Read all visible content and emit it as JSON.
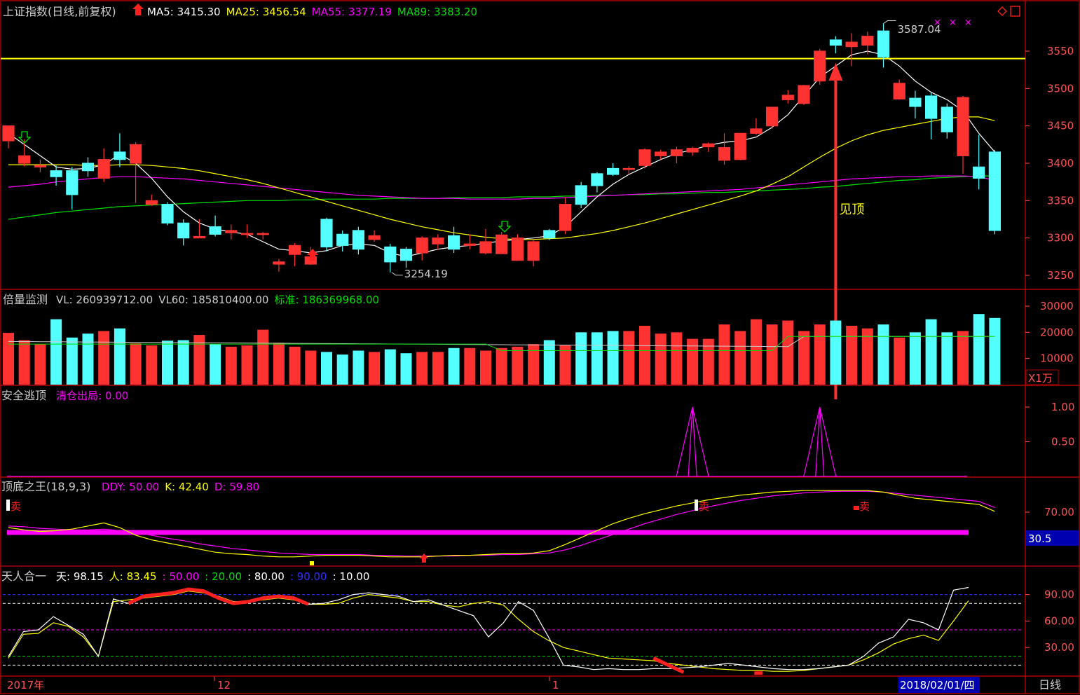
{
  "colors": {
    "up": "#ff3232",
    "down": "#54ffff",
    "ma5": "#ffffff",
    "ma25": "#ffff00",
    "ma55": "#ff00ff",
    "ma89": "#00e000",
    "frame": "#c00000",
    "axis": "#ff5050",
    "text": "#cccccc"
  },
  "main": {
    "title": "上证指数(日线,前复权)",
    "legend": [
      {
        "label": "MA5: 3415.30",
        "color": "#ffffff"
      },
      {
        "label": "MA25: 3456.54",
        "color": "#ffff00"
      },
      {
        "label": "MA55: 3377.19",
        "color": "#ff00ff"
      },
      {
        "label": "MA89: 3383.20",
        "color": "#00e000"
      }
    ],
    "yticks": [
      "3550",
      "3500",
      "3450",
      "3400",
      "3350",
      "3300",
      "3250"
    ],
    "annot_high": "3587.04",
    "annot_low": "3254.19",
    "annot_top": "见顶"
  },
  "volume": {
    "title": "倍量监测",
    "legend": [
      {
        "label": "VL: 260939712.00",
        "color": "#cccccc"
      },
      {
        "label": "VL60: 185810400.00",
        "color": "#cccccc"
      },
      {
        "label": "标准: 186369968.00",
        "color": "#00e000"
      }
    ],
    "yticks": [
      "30000",
      "20000",
      "10000"
    ],
    "unit": "X1万"
  },
  "escape": {
    "title": "安全逃顶",
    "legend": [
      {
        "label": "清仓出局: 0.00",
        "color": "#ff00ff"
      }
    ],
    "yticks": [
      "1.00",
      "0.50"
    ]
  },
  "kd": {
    "title": "顶底之王(18,9,3)",
    "legend": [
      {
        "label": "DDY: 50.00",
        "color": "#ff00ff"
      },
      {
        "label": "K: 42.40",
        "color": "#ffff00"
      },
      {
        "label": "D: 59.80",
        "color": "#ff00ff"
      }
    ],
    "yticks": [
      "70.00"
    ],
    "current": "30.5",
    "sell_label": "卖"
  },
  "trh": {
    "title": "天人合一",
    "legend": [
      {
        "label": "天: 98.15",
        "color": "#ffffff"
      },
      {
        "label": "人: 83.45",
        "color": "#ffff00"
      },
      {
        "label": ": 50.00",
        "color": "#ff00ff"
      },
      {
        "label": ": 20.00",
        "color": "#00e000"
      },
      {
        "label": ": 80.00",
        "color": "#ffffff"
      },
      {
        "label": ": 90.00",
        "color": "#3030ff"
      },
      {
        "label": ": 10.00",
        "color": "#ffffff"
      }
    ],
    "yticks": [
      "90.00",
      "60.00",
      "30.00"
    ]
  },
  "xaxis": {
    "labels": [
      "2017年",
      "12",
      "1"
    ],
    "current_date": "2018/02/01/四",
    "period": "日线"
  },
  "chart_data": {
    "type": "candlestick",
    "title": "上证指数(日线,前复权)",
    "ylim": [
      3230,
      3600
    ],
    "candles": [
      [
        3430,
        3450,
        3445,
        3420
      ],
      [
        3400,
        3410,
        3432,
        3396
      ],
      [
        3395,
        3397,
        3405,
        3388
      ],
      [
        3390,
        3382,
        3397,
        3370
      ],
      [
        3390,
        3358,
        3395,
        3338
      ],
      [
        3400,
        3390,
        3408,
        3382
      ],
      [
        3380,
        3405,
        3420,
        3375
      ],
      [
        3415,
        3405,
        3440,
        3395
      ],
      [
        3400,
        3425,
        3428,
        3347
      ],
      [
        3345,
        3350,
        3358,
        3343
      ],
      [
        3345,
        3320,
        3348,
        3317
      ],
      [
        3320,
        3300,
        3325,
        3290
      ],
      [
        3300,
        3302,
        3325,
        3300
      ],
      [
        3315,
        3305,
        3330,
        3302
      ],
      [
        3307,
        3310,
        3318,
        3298
      ],
      [
        3305,
        3306,
        3318,
        3300
      ],
      [
        3305,
        3306,
        3308,
        3298
      ],
      [
        3265,
        3268,
        3272,
        3255
      ],
      [
        3278,
        3290,
        3293,
        3262
      ],
      [
        3265,
        3275,
        3288,
        3264
      ],
      [
        3325,
        3288,
        3327,
        3282
      ],
      [
        3305,
        3290,
        3310,
        3282
      ],
      [
        3310,
        3285,
        3315,
        3278
      ],
      [
        3298,
        3303,
        3310,
        3295
      ],
      [
        3288,
        3268,
        3292,
        3254
      ],
      [
        3285,
        3270,
        3288,
        3260
      ],
      [
        3280,
        3300,
        3302,
        3270
      ],
      [
        3292,
        3300,
        3305,
        3284
      ],
      [
        3303,
        3285,
        3315,
        3280
      ],
      [
        3290,
        3292,
        3305,
        3285
      ],
      [
        3280,
        3295,
        3312,
        3278
      ],
      [
        3279,
        3304,
        3308,
        3279
      ],
      [
        3270,
        3300,
        3305,
        3270
      ],
      [
        3270,
        3295,
        3298,
        3262
      ],
      [
        3310,
        3300,
        3312,
        3297
      ],
      [
        3310,
        3345,
        3355,
        3305
      ],
      [
        3370,
        3345,
        3375,
        3340
      ],
      [
        3386,
        3370,
        3388,
        3361
      ],
      [
        3393,
        3385,
        3400,
        3383
      ],
      [
        3392,
        3393,
        3396,
        3386
      ],
      [
        3397,
        3418,
        3420,
        3393
      ],
      [
        3410,
        3415,
        3418,
        3405
      ],
      [
        3410,
        3418,
        3422,
        3400
      ],
      [
        3415,
        3420,
        3422,
        3410
      ],
      [
        3422,
        3426,
        3428,
        3415
      ],
      [
        3404,
        3421,
        3440,
        3398
      ],
      [
        3405,
        3440,
        3440,
        3404
      ],
      [
        3440,
        3446,
        3460,
        3438
      ],
      [
        3450,
        3475,
        3475,
        3446
      ],
      [
        3485,
        3491,
        3498,
        3480
      ],
      [
        3480,
        3504,
        3505,
        3478
      ],
      [
        3510,
        3550,
        3553,
        3505
      ],
      [
        3565,
        3558,
        3570,
        3547
      ],
      [
        3556,
        3562,
        3574,
        3530
      ],
      [
        3558,
        3570,
        3576,
        3546
      ],
      [
        3577,
        3542,
        3587,
        3528
      ],
      [
        3486,
        3507,
        3512,
        3485
      ],
      [
        3487,
        3476,
        3497,
        3460
      ],
      [
        3490,
        3460,
        3494,
        3432
      ],
      [
        3475,
        3442,
        3480,
        3433
      ],
      [
        3410,
        3488,
        3490,
        3386
      ],
      [
        3395,
        3380,
        3438,
        3365
      ],
      [
        3415,
        3310,
        3418,
        3305
      ]
    ],
    "volume": [
      19800,
      17000,
      15500,
      25000,
      18000,
      19500,
      20500,
      21500,
      15800,
      15000,
      16800,
      17000,
      19000,
      15500,
      14500,
      15000,
      21000,
      16000,
      14500,
      13000,
      12500,
      11500,
      13000,
      12500,
      13500,
      12000,
      12500,
      12500,
      14000,
      14000,
      13000,
      14000,
      14500,
      15500,
      17000,
      15000,
      20000,
      20000,
      20500,
      20500,
      22500,
      19500,
      20000,
      17500,
      17500,
      23000,
      20500,
      25000,
      23000,
      24500,
      20500,
      23000,
      24500,
      22500,
      21500,
      23000,
      18000,
      20000,
      25000,
      20000,
      20500,
      27000,
      25500
    ],
    "escape_signals": [
      43,
      51
    ],
    "ma": {
      "ma5": [
        3440,
        3425,
        3410,
        3395,
        3392,
        3393,
        3398,
        3412,
        3400,
        3380,
        3355,
        3335,
        3320,
        3312,
        3308,
        3305,
        3295,
        3285,
        3283,
        3280,
        3283,
        3290,
        3292,
        3290,
        3280,
        3275,
        3280,
        3285,
        3288,
        3290,
        3293,
        3296,
        3298,
        3300,
        3303,
        3315,
        3335,
        3355,
        3372,
        3385,
        3395,
        3405,
        3413,
        3418,
        3424,
        3428,
        3430,
        3435,
        3448,
        3465,
        3490,
        3515,
        3530,
        3545,
        3550,
        3545,
        3530,
        3510,
        3495,
        3485,
        3470,
        3440,
        3415
      ],
      "ma25": [
        3398,
        3398,
        3398,
        3398,
        3398,
        3397,
        3397,
        3398,
        3398,
        3397,
        3395,
        3393,
        3390,
        3386,
        3382,
        3378,
        3373,
        3367,
        3361,
        3355,
        3349,
        3343,
        3337,
        3331,
        3325,
        3320,
        3315,
        3311,
        3307,
        3304,
        3301,
        3299,
        3298,
        3298,
        3299,
        3300,
        3303,
        3306,
        3310,
        3315,
        3320,
        3326,
        3332,
        3338,
        3344,
        3350,
        3356,
        3363,
        3372,
        3382,
        3395,
        3408,
        3420,
        3430,
        3438,
        3444,
        3448,
        3452,
        3456,
        3460,
        3462,
        3462,
        3457
      ],
      "ma55": [
        3368,
        3370,
        3372,
        3375,
        3377,
        3379,
        3381,
        3382,
        3382,
        3381,
        3380,
        3379,
        3377,
        3375,
        3373,
        3371,
        3369,
        3367,
        3365,
        3363,
        3361,
        3359,
        3357,
        3356,
        3355,
        3354,
        3353,
        3353,
        3353,
        3352,
        3352,
        3352,
        3352,
        3353,
        3353,
        3354,
        3355,
        3356,
        3357,
        3358,
        3359,
        3360,
        3361,
        3362,
        3363,
        3364,
        3365,
        3367,
        3369,
        3371,
        3373,
        3375,
        3377,
        3379,
        3380,
        3381,
        3382,
        3382,
        3383,
        3383,
        3383,
        3382,
        3377
      ],
      "ma89": [
        3325,
        3328,
        3331,
        3334,
        3336,
        3338,
        3340,
        3342,
        3343,
        3344,
        3345,
        3346,
        3347,
        3348,
        3349,
        3350,
        3350,
        3350,
        3351,
        3351,
        3352,
        3352,
        3352,
        3352,
        3353,
        3353,
        3353,
        3353,
        3354,
        3354,
        3354,
        3354,
        3355,
        3355,
        3355,
        3356,
        3356,
        3357,
        3357,
        3358,
        3358,
        3359,
        3359,
        3360,
        3361,
        3361,
        3362,
        3363,
        3364,
        3365,
        3366,
        3368,
        3369,
        3371,
        3373,
        3375,
        3377,
        3378,
        3380,
        3381,
        3382,
        3383,
        3383
      ]
    },
    "hline": 3540
  }
}
